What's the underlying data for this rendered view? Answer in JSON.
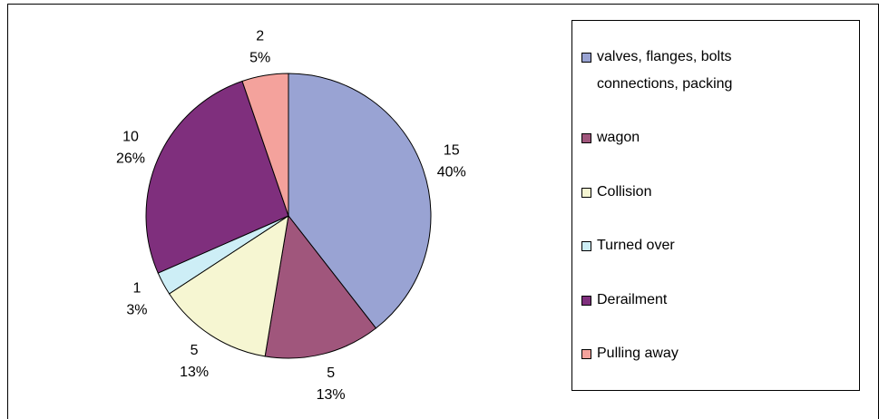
{
  "chart_data": {
    "type": "pie",
    "categories": [
      "valves, flanges, bolts connections, packing",
      "wagon",
      "Collision",
      "Turned over",
      "Derailment",
      "Pulling away"
    ],
    "values": [
      15,
      5,
      5,
      1,
      10,
      2
    ],
    "percent_labels": [
      "40%",
      "13%",
      "13%",
      "3%",
      "26%",
      "5%"
    ],
    "colors": [
      "#99a3d3",
      "#a0567c",
      "#f6f6d2",
      "#cdeef6",
      "#7f2f7d",
      "#f4a29c"
    ],
    "legend": "right"
  }
}
